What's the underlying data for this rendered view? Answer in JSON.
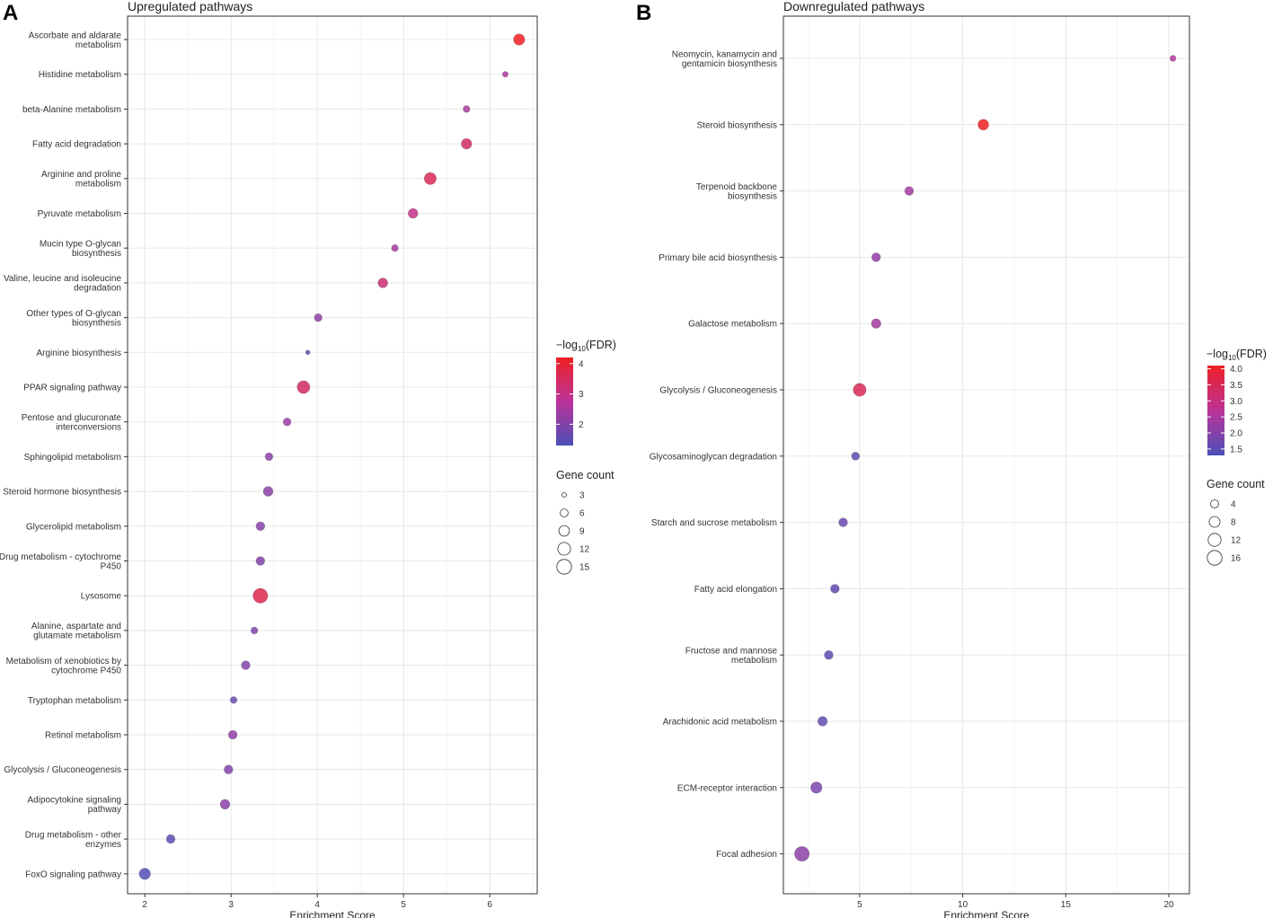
{
  "chart_data": [
    {
      "type": "scatter",
      "panel_label": "A",
      "title": "Upregulated pathways",
      "xlabel": "Enrichment Score",
      "ylabel": "",
      "xlim": [
        1.8,
        6.55
      ],
      "xticks": [
        2,
        3,
        4,
        5,
        6
      ],
      "grid": true,
      "color_scale": {
        "title": "−log10(FDR)",
        "title_prefix": "−log",
        "title_sub": "10",
        "title_suffix": "(FDR)",
        "min": 1.3,
        "max": 4.2,
        "ticks": [
          2,
          3,
          4
        ],
        "low_color": "#4B50B8",
        "mid_color": "#BC3399",
        "high_color": "#EE2024"
      },
      "size_scale": {
        "title": "Gene count",
        "min": 3,
        "max": 15,
        "ticks": [
          3,
          6,
          9,
          12,
          15
        ]
      },
      "points": [
        {
          "label": "Ascorbate and aldarate\nmetabolism",
          "x": 6.34,
          "fdr": 4.3,
          "count": 10
        },
        {
          "label": "Histidine metabolism",
          "x": 6.18,
          "fdr": 2.6,
          "count": 4
        },
        {
          "label": "beta-Alanine metabolism",
          "x": 5.73,
          "fdr": 2.5,
          "count": 5
        },
        {
          "label": "Fatty acid degradation",
          "x": 5.73,
          "fdr": 3.4,
          "count": 9
        },
        {
          "label": "Arginine and proline\nmetabolism",
          "x": 5.31,
          "fdr": 3.6,
          "count": 11
        },
        {
          "label": "Pyruvate metabolism",
          "x": 5.11,
          "fdr": 3.0,
          "count": 8
        },
        {
          "label": "Mucin type O-glycan\nbiosynthesis",
          "x": 4.9,
          "fdr": 2.5,
          "count": 5
        },
        {
          "label": "Valine, leucine and isoleucine\ndegradation",
          "x": 4.76,
          "fdr": 3.2,
          "count": 8
        },
        {
          "label": "Other types of O-glycan\nbiosynthesis",
          "x": 4.01,
          "fdr": 2.2,
          "count": 6
        },
        {
          "label": "Arginine biosynthesis",
          "x": 3.89,
          "fdr": 1.6,
          "count": 3
        },
        {
          "label": "PPAR signaling pathway",
          "x": 3.84,
          "fdr": 3.4,
          "count": 12
        },
        {
          "label": "Pentose and glucuronate\ninterconversions",
          "x": 3.65,
          "fdr": 2.3,
          "count": 6
        },
        {
          "label": "Sphingolipid metabolism",
          "x": 3.44,
          "fdr": 2.1,
          "count": 6
        },
        {
          "label": "Steroid hormone biosynthesis",
          "x": 3.43,
          "fdr": 2.1,
          "count": 8
        },
        {
          "label": "Glycerolipid metabolism",
          "x": 3.34,
          "fdr": 2.1,
          "count": 7
        },
        {
          "label": "Drug metabolism - cytochrome\nP450",
          "x": 3.34,
          "fdr": 2.0,
          "count": 7
        },
        {
          "label": "Lysosome",
          "x": 3.34,
          "fdr": 3.7,
          "count": 15
        },
        {
          "label": "Alanine, aspartate and\nglutamate metabolism",
          "x": 3.27,
          "fdr": 1.9,
          "count": 5
        },
        {
          "label": "Metabolism of xenobiotics by\ncytochrome P450",
          "x": 3.17,
          "fdr": 2.0,
          "count": 7
        },
        {
          "label": "Tryptophan metabolism",
          "x": 3.03,
          "fdr": 1.7,
          "count": 5
        },
        {
          "label": "Retinol metabolism",
          "x": 3.02,
          "fdr": 2.2,
          "count": 7
        },
        {
          "label": "Glycolysis / Gluconeogenesis",
          "x": 2.97,
          "fdr": 2.0,
          "count": 7
        },
        {
          "label": "Adipocytokine signaling\npathway",
          "x": 2.93,
          "fdr": 2.1,
          "count": 8
        },
        {
          "label": "Drug metabolism - other\nenzymes",
          "x": 2.3,
          "fdr": 1.5,
          "count": 7
        },
        {
          "label": "FoxO signaling pathway",
          "x": 2.0,
          "fdr": 1.4,
          "count": 10
        }
      ]
    },
    {
      "type": "scatter",
      "panel_label": "B",
      "title": "Downregulated pathways",
      "xlabel": "Enrichment Score",
      "ylabel": "",
      "xlim": [
        1.3,
        21.0
      ],
      "xticks": [
        5,
        10,
        15,
        20
      ],
      "grid": true,
      "color_scale": {
        "title": "−log10(FDR)",
        "title_prefix": "−log",
        "title_sub": "10",
        "title_suffix": "(FDR)",
        "min": 1.3,
        "max": 4.1,
        "ticks": [
          1.5,
          2.0,
          2.5,
          3.0,
          3.5,
          4.0
        ],
        "tick_labels": [
          "1.5",
          "2.0",
          "2.5",
          "3.0",
          "3.5",
          "4.0"
        ],
        "low_color": "#4B50B8",
        "mid_color": "#BC3399",
        "high_color": "#EE2024"
      },
      "size_scale": {
        "title": "Gene count",
        "min": 4,
        "max": 16,
        "ticks": [
          4,
          8,
          12,
          16
        ]
      },
      "points": [
        {
          "label": "Neomycin, kanamycin and\ngentamicin biosynthesis",
          "x": 20.2,
          "fdr": 2.6,
          "count": 2
        },
        {
          "label": "Steroid biosynthesis",
          "x": 11.0,
          "fdr": 4.1,
          "count": 8
        },
        {
          "label": "Terpenoid backbone\nbiosynthesis",
          "x": 7.4,
          "fdr": 2.4,
          "count": 5
        },
        {
          "label": "Primary bile acid biosynthesis",
          "x": 5.8,
          "fdr": 2.2,
          "count": 5
        },
        {
          "label": "Galactose metabolism",
          "x": 5.8,
          "fdr": 2.4,
          "count": 6
        },
        {
          "label": "Glycolysis / Gluconeogenesis",
          "x": 5.0,
          "fdr": 3.5,
          "count": 12
        },
        {
          "label": "Glycosaminoglycan degradation",
          "x": 4.8,
          "fdr": 1.6,
          "count": 4
        },
        {
          "label": "Starch and sucrose metabolism",
          "x": 4.2,
          "fdr": 1.7,
          "count": 5
        },
        {
          "label": "Fatty acid elongation",
          "x": 3.8,
          "fdr": 1.6,
          "count": 5
        },
        {
          "label": "Fructose and mannose\nmetabolism",
          "x": 3.5,
          "fdr": 1.5,
          "count": 5
        },
        {
          "label": "Arachidonic acid metabolism",
          "x": 3.2,
          "fdr": 1.6,
          "count": 6
        },
        {
          "label": "ECM-receptor interaction",
          "x": 2.9,
          "fdr": 1.9,
          "count": 9
        },
        {
          "label": "Focal adhesion",
          "x": 2.2,
          "fdr": 2.1,
          "count": 16
        }
      ]
    }
  ]
}
